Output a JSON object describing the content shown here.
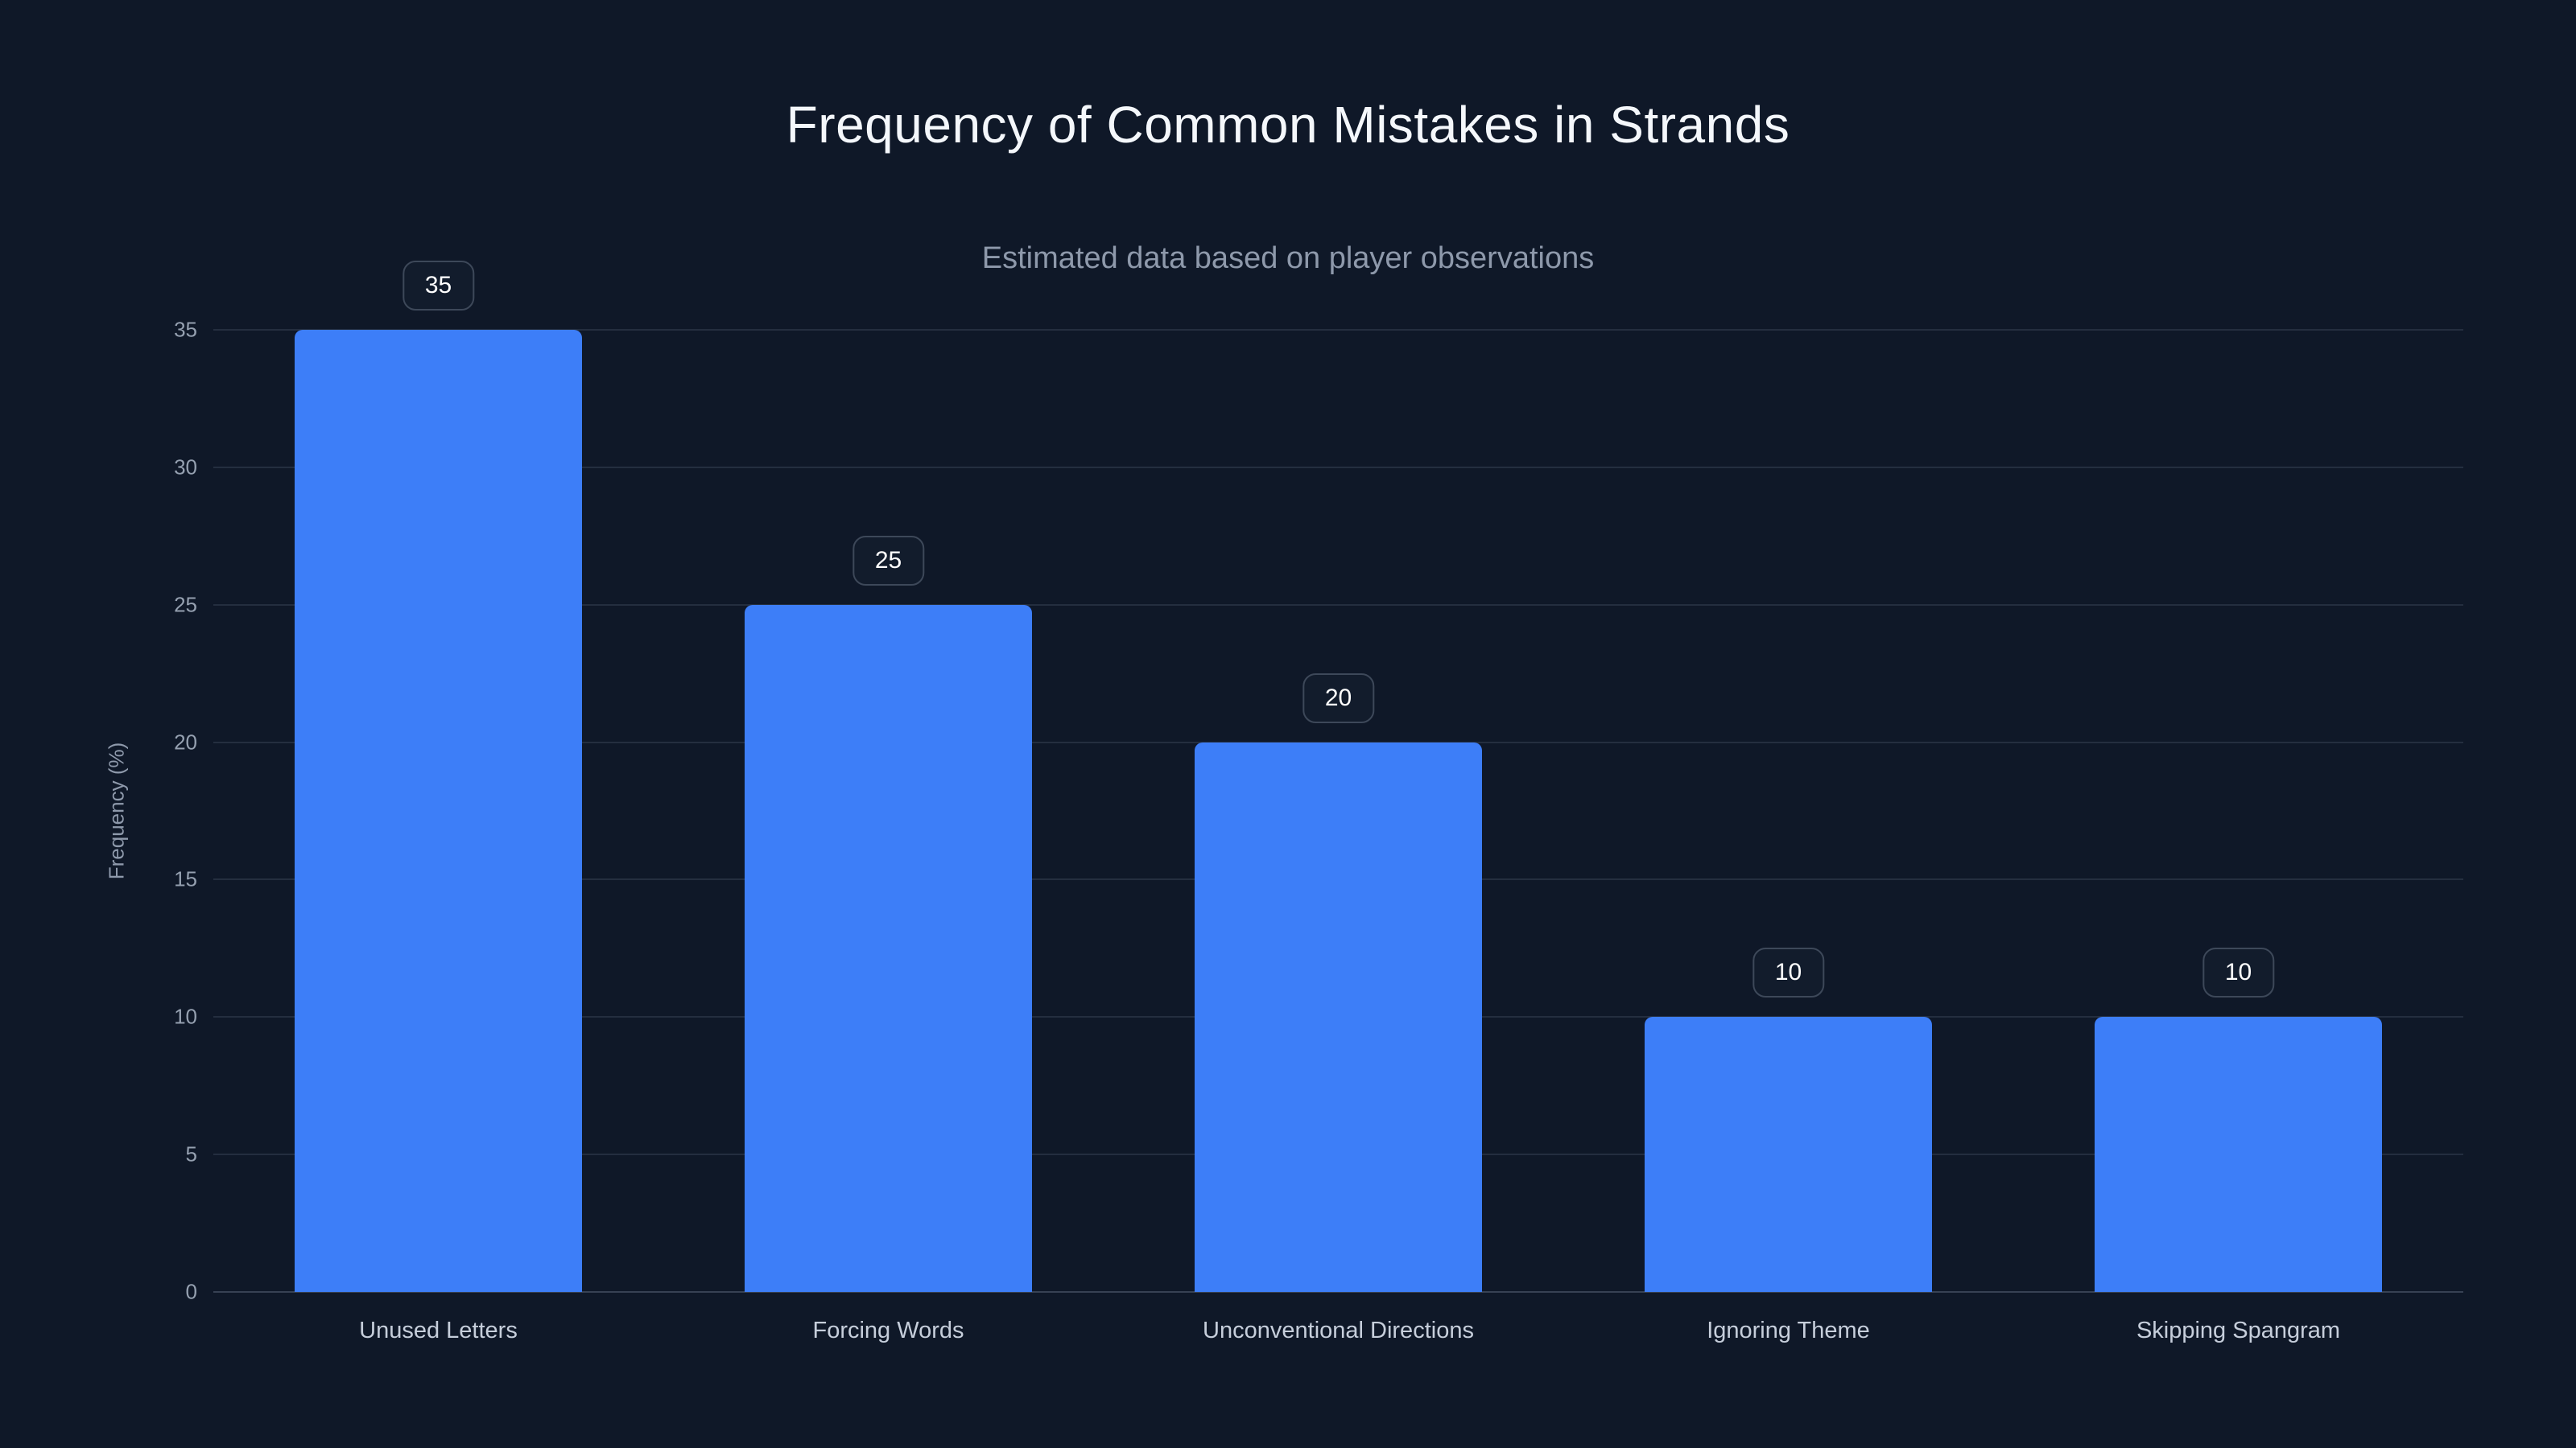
{
  "chart_data": {
    "type": "bar",
    "title": "Frequency of Common Mistakes in Strands",
    "subtitle": "Estimated data based on player observations",
    "categories": [
      "Unused Letters",
      "Forcing Words",
      "Unconventional Directions",
      "Ignoring Theme",
      "Skipping Spangram"
    ],
    "values": [
      35,
      25,
      20,
      10,
      10
    ],
    "data_labels": [
      "35",
      "25",
      "20",
      "10",
      "10"
    ],
    "xlabel": "",
    "ylabel": "Frequency (%)",
    "ylim": [
      0,
      35
    ],
    "yticks": [
      0,
      5,
      10,
      15,
      20,
      25,
      30,
      35
    ],
    "grid": true,
    "legend": false,
    "bar_color": "#3d7ef8",
    "background_color": "#0f1828",
    "grid_color": "rgba(148,163,184,0.16)",
    "badge_border_color": "#3d4859",
    "title_color": "#f4f7fb",
    "subtitle_color": "#8e99ab"
  }
}
